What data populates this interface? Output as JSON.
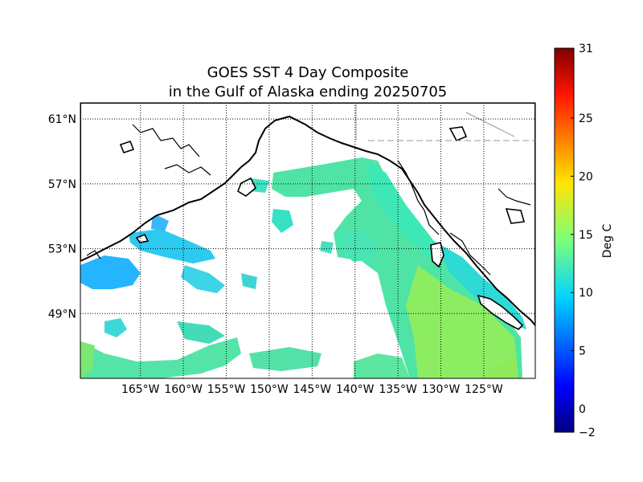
{
  "title_line1": "GOES SST 4 Day Composite",
  "title_line2": "in the Gulf of Alaska ending 20250705",
  "map": {
    "lon_range": [
      -172,
      -119
    ],
    "lat_range": [
      45,
      62
    ],
    "meridian_labels": [
      "165°W",
      "160°W",
      "155°W",
      "150°W",
      "145°W",
      "140°W",
      "135°W",
      "130°W",
      "125°W"
    ],
    "meridians": [
      -165,
      -160,
      -155,
      -150,
      -145,
      -140,
      -135,
      -130,
      -125
    ],
    "parallel_labels": [
      "61°N",
      "57°N",
      "53°N",
      "49°N"
    ],
    "parallels": [
      61,
      57,
      53,
      49
    ],
    "grid": "dotted"
  },
  "colorbar": {
    "label": "Deg C",
    "vmin": -2,
    "vmax": 31,
    "ticks": [
      -2,
      0,
      5,
      10,
      15,
      20,
      25,
      31
    ],
    "colormap": "jet"
  }
}
